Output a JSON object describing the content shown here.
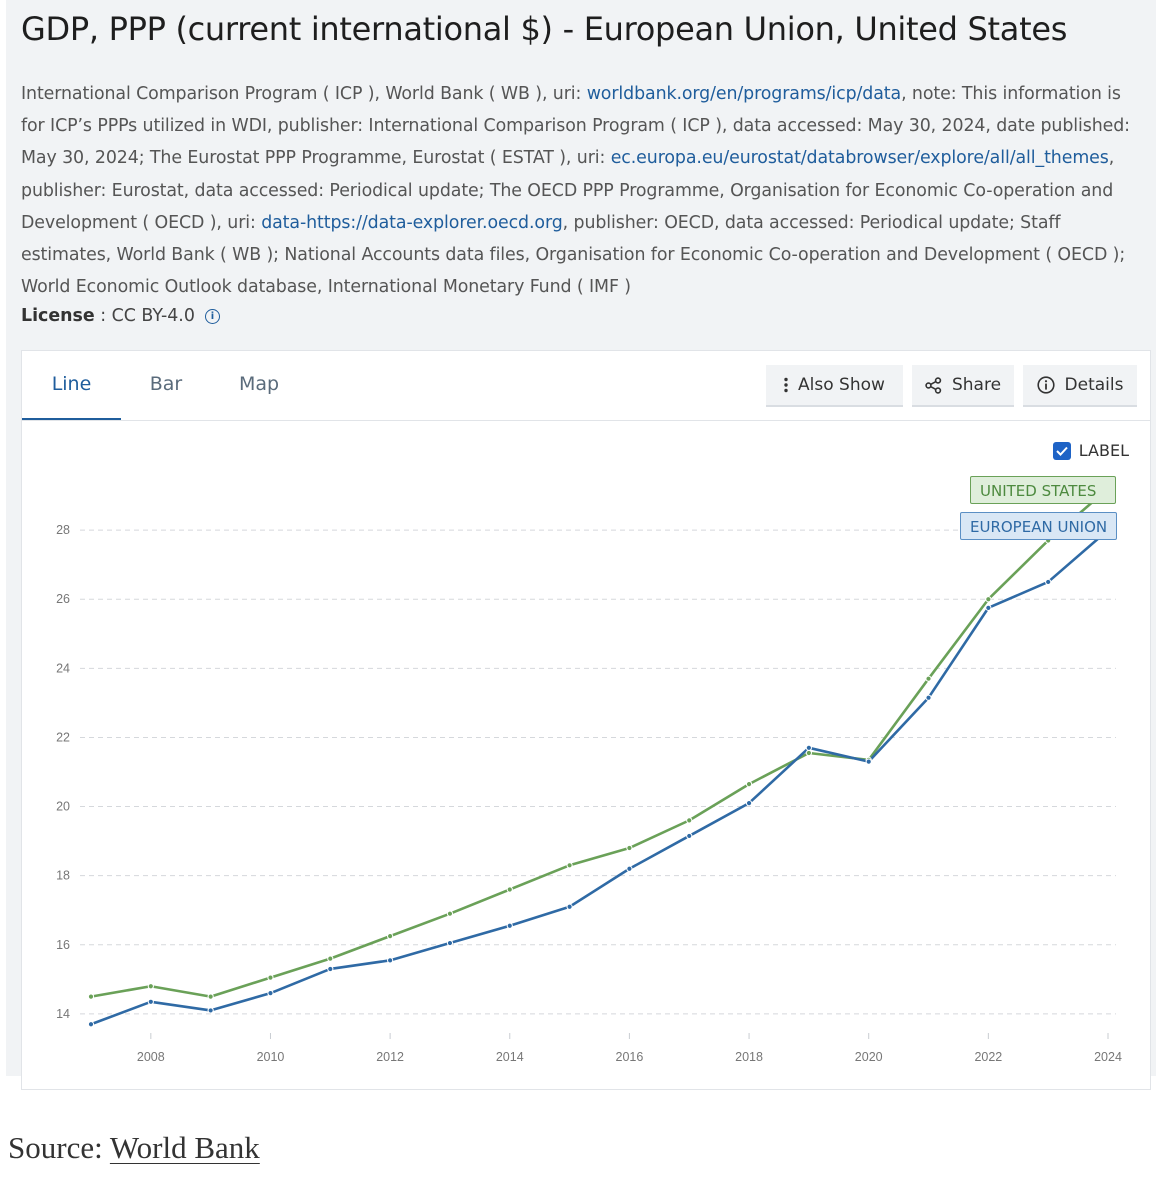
{
  "title": "GDP, PPP (current international $) - European Union, United States",
  "sources": {
    "t1": "International Comparison Program ( ICP ), World Bank ( WB ), uri: ",
    "l1": "worldbank.org/en/programs/icp/data",
    "t2": ", note: This information is for ICP’s PPPs utilized in WDI, publisher: International Comparison Program ( ICP ), data accessed: May 30, 2024, date published: May 30, 2024; The Eurostat PPP Programme, Eurostat ( ESTAT ), uri: ",
    "l2": "ec.europa.eu/eurostat/databrowser/explore/all/all_themes",
    "t3": ", publisher: Eurostat, data accessed: Periodical update; The OECD PPP Programme, Organisation for Economic Co-operation and Development ( OECD ), uri: ",
    "l3": "data-https://data-explorer.oecd.org",
    "t4": ", publisher: OECD, data accessed: Periodical update; Staff estimates, World Bank ( WB ); National Accounts data files, Organisation for Economic Co-operation and Development ( OECD ); World Economic Outlook database, International Monetary Fund ( IMF )"
  },
  "license": {
    "label": "License",
    "value": "CC BY-4.0",
    "icon": "info-icon"
  },
  "tabs": [
    "Line",
    "Bar",
    "Map"
  ],
  "buttons": {
    "also_show": "Also Show",
    "share": "Share",
    "details": "Details"
  },
  "label_toggle": "LABEL",
  "colors": {
    "us": "#6aa158",
    "eu": "#2f6aa5",
    "accent": "#1f5d9c"
  },
  "chart_data": {
    "type": "line",
    "x": [
      2007,
      2008,
      2009,
      2010,
      2011,
      2012,
      2013,
      2014,
      2015,
      2016,
      2017,
      2018,
      2019,
      2020,
      2021,
      2022,
      2023,
      2024
    ],
    "series": [
      {
        "name": "UNITED STATES",
        "values": [
          14.5,
          14.8,
          14.5,
          15.05,
          15.6,
          16.25,
          16.9,
          17.6,
          18.3,
          18.8,
          19.6,
          20.65,
          21.55,
          21.35,
          23.7,
          26.0,
          27.7,
          29.2
        ]
      },
      {
        "name": "EUROPEAN UNION",
        "values": [
          13.7,
          14.35,
          14.1,
          14.6,
          15.3,
          15.55,
          16.05,
          16.55,
          17.1,
          18.2,
          19.15,
          20.1,
          21.7,
          21.3,
          23.15,
          25.75,
          26.5,
          28.0
        ]
      }
    ],
    "xticks": [
      "2008",
      "2010",
      "2012",
      "2014",
      "2016",
      "2018",
      "2020",
      "2022",
      "2024"
    ],
    "yticks": [
      "14",
      "16",
      "18",
      "20",
      "22",
      "24",
      "26",
      "28"
    ],
    "ylim": [
      12.0,
      30.0
    ],
    "xlim": [
      2007,
      2024
    ],
    "grid": true
  },
  "footer": {
    "prefix": "Source: ",
    "link": "World Bank"
  }
}
